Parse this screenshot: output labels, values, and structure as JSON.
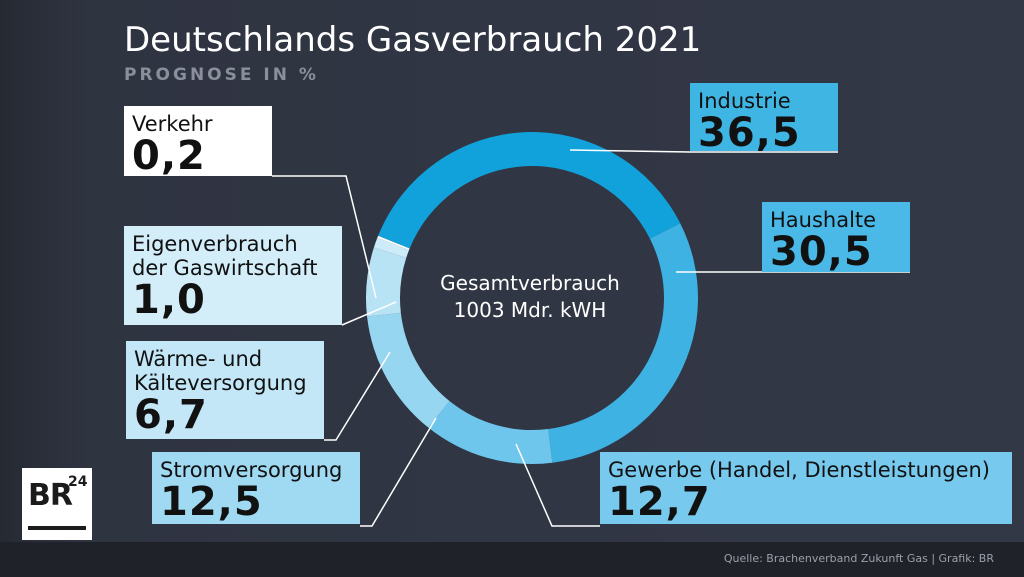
{
  "title": "Deutschlands Gasverbrauch 2021",
  "subtitle": "PROGNOSE IN %",
  "source": "Quelle: Brachenverband Zukunft Gas | Grafik: BR",
  "logo": {
    "text": "BR",
    "superscript": "24"
  },
  "center": {
    "line1": "Gesamtverbrauch",
    "line2": "1003 Mdr. kWH"
  },
  "chart_data": {
    "type": "pie",
    "donut": true,
    "title": "Deutschlands Gasverbrauch 2021",
    "subtitle": "PROGNOSE IN %",
    "unit": "%",
    "series": [
      {
        "name": "Industrie",
        "value": 36.5,
        "label": "36,5",
        "color": "#12a2db",
        "box_color": "#3fb5e4"
      },
      {
        "name": "Haushalte",
        "value": 30.5,
        "label": "30,5",
        "color": "#3db2e3",
        "box_color": "#4ab9e7"
      },
      {
        "name": "Gewerbe (Handel, Dienstleistungen)",
        "value": 12.7,
        "label": "12,7",
        "color": "#6ec6ec",
        "box_color": "#77c9ee"
      },
      {
        "name": "Stromversorgung",
        "value": 12.5,
        "label": "12,5",
        "color": "#97d6f1",
        "box_color": "#9fd9f2"
      },
      {
        "name": "Wärme- und Kälteversorgung",
        "value": 6.7,
        "label": "6,7",
        "color": "#b8e3f5",
        "box_color": "#c3e7f7"
      },
      {
        "name": "Eigenverbrauch der Gaswirtschaft",
        "value": 1.0,
        "label": "1,0",
        "color": "#cdebf8",
        "box_color": "#d3edf9"
      },
      {
        "name": "Verkehr",
        "value": 0.2,
        "label": "0,2",
        "color": "#ffffff",
        "box_color": "#ffffff"
      }
    ],
    "labels": {
      "Industrie": "Industrie",
      "Haushalte": "Haushalte",
      "Gewerbe": "Gewerbe (Handel, Dienstleistungen)",
      "Stromversorgung": "Stromversorgung",
      "Waerme": "Wärme- und\nKälteversorgung",
      "Eigenverbrauch": "Eigenverbrauch\nder Gaswirtschaft",
      "Verkehr": "Verkehr"
    }
  }
}
